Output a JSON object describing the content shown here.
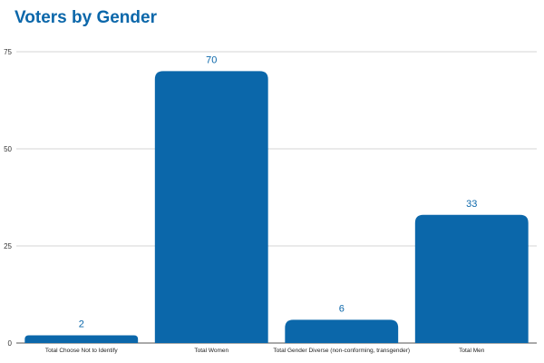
{
  "colors": {
    "bar": "#0b67aa",
    "title": "#0b67aa",
    "data_label": "#0b67aa",
    "grid": "#c8c8c8",
    "axis": "#555555"
  },
  "chart_data": {
    "type": "bar",
    "title": "Voters by Gender",
    "xlabel": "",
    "ylabel": "",
    "categories": [
      "Total Choose Not to Identify",
      "Total Women",
      "Total Gender Diverse (non-conforming, transgender)",
      "Total Men"
    ],
    "values": [
      2,
      70,
      6,
      33
    ],
    "ylim": [
      0,
      75
    ],
    "yticks": [
      0,
      25,
      50,
      75
    ],
    "grid": true,
    "legend": "none",
    "data_labels": true
  }
}
